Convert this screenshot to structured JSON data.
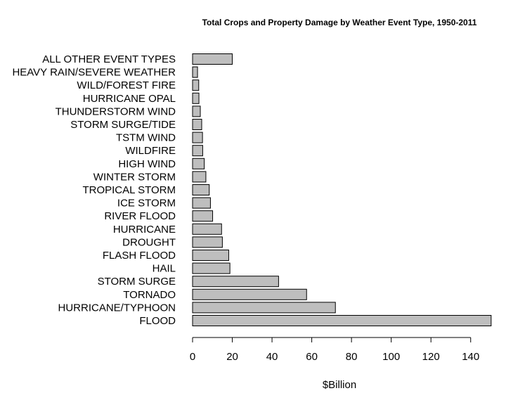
{
  "chart_data": {
    "type": "bar",
    "orientation": "horizontal",
    "title": "Total Crops and Property Damage by Weather Event Type, 1950-2011",
    "xlabel": "$Billion",
    "ylabel": "",
    "xlim": [
      0,
      150
    ],
    "xticks": [
      0,
      20,
      40,
      60,
      80,
      100,
      120,
      140
    ],
    "grid": false,
    "bar_color": "#bebebe",
    "categories": [
      "FLOOD",
      "HURRICANE/TYPHOON",
      "TORNADO",
      "STORM SURGE",
      "HAIL",
      "FLASH FLOOD",
      "DROUGHT",
      "HURRICANE",
      "RIVER FLOOD",
      "ICE STORM",
      "TROPICAL STORM",
      "WINTER STORM",
      "HIGH WIND",
      "WILDFIRE",
      "TSTM WIND",
      "STORM SURGE/TIDE",
      "THUNDERSTORM WIND",
      "HURRICANE OPAL",
      "WILD/FOREST FIRE",
      "HEAVY RAIN/SEVERE WEATHER",
      "ALL OTHER EVENT TYPES"
    ],
    "values": [
      150.3,
      71.9,
      57.4,
      43.3,
      18.8,
      18.2,
      15.0,
      14.6,
      10.1,
      9.0,
      8.4,
      6.7,
      5.9,
      5.1,
      5.0,
      4.6,
      3.9,
      3.2,
      3.1,
      2.5,
      20.0
    ]
  }
}
